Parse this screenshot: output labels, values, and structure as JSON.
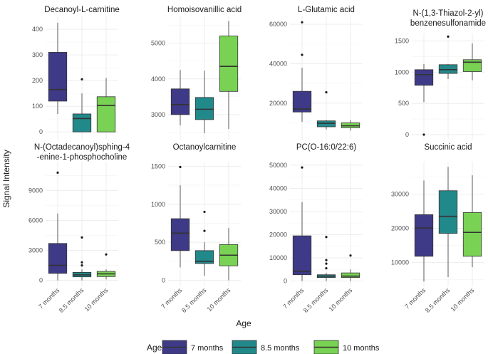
{
  "chart_data": {
    "type": "boxplot",
    "ylabel": "Signal Intensity",
    "xlabel": "Age",
    "categories": [
      "7 months",
      "8.5 months",
      "10 months"
    ],
    "colors": [
      "#3e3a87",
      "#22898b",
      "#79d253"
    ],
    "legend": {
      "title": "Age",
      "placement": "bottom",
      "entries": [
        "7 months",
        "8.5 months",
        "10 months"
      ]
    },
    "panels": [
      {
        "title": [
          "Decanoyl-L-carnitine"
        ],
        "ylim": [
          -30,
          450
        ],
        "ticks": [
          0,
          100,
          200,
          300,
          400
        ],
        "tick_labels": [
          "0",
          "100",
          "200",
          "300",
          "400"
        ],
        "boxes": [
          {
            "lw": 70,
            "q1": 120,
            "med": 165,
            "q3": 310,
            "uw": 425,
            "outliers": []
          },
          {
            "lw": 0,
            "q1": 0,
            "med": 52,
            "q3": 70,
            "uw": 150,
            "outliers": [
              205
            ]
          },
          {
            "lw": 0,
            "q1": 0,
            "med": 103,
            "q3": 137,
            "uw": 210,
            "outliers": []
          }
        ]
      },
      {
        "title": [
          "Homoisovanillic acid"
        ],
        "ylim": [
          2300,
          5750
        ],
        "ticks": [
          3000,
          4000,
          5000
        ],
        "tick_labels": [
          "3000",
          "4000",
          "5000"
        ],
        "boxes": [
          {
            "lw": 2700,
            "q1": 3000,
            "med": 3280,
            "q3": 3720,
            "uw": 4250,
            "outliers": []
          },
          {
            "lw": 2480,
            "q1": 2860,
            "med": 3150,
            "q3": 3480,
            "uw": 4230,
            "outliers": []
          },
          {
            "lw": 2600,
            "q1": 3650,
            "med": 4350,
            "q3": 5200,
            "uw": 5620,
            "outliers": []
          }
        ]
      },
      {
        "title": [
          "L-Glutamic acid"
        ],
        "ylim": [
          1500,
          64000
        ],
        "ticks": [
          20000,
          40000,
          60000
        ],
        "tick_labels": [
          "20000",
          "40000",
          "60000"
        ],
        "boxes": [
          {
            "lw": 10500,
            "q1": 15500,
            "med": 17000,
            "q3": 26000,
            "uw": 38000,
            "outliers": [
              44500,
              61000
            ]
          },
          {
            "lw": 6700,
            "q1": 8000,
            "med": 9800,
            "q3": 11000,
            "uw": 11500,
            "outliers": [
              25500
            ]
          },
          {
            "lw": 6000,
            "q1": 7500,
            "med": 8500,
            "q3": 10000,
            "uw": 11400,
            "outliers": []
          }
        ]
      },
      {
        "title": [
          "N-(1,3-Thiazol-2-yl)",
          "benzenesulfonamide"
        ],
        "ylim": [
          -80,
          1620
        ],
        "ticks": [
          0,
          500,
          1000,
          1500
        ],
        "tick_labels": [
          "0",
          "500",
          "1000",
          "1500"
        ],
        "boxes": [
          {
            "lw": 520,
            "q1": 790,
            "med": 960,
            "q3": 1040,
            "uw": 1130,
            "outliers": [
              0
            ]
          },
          {
            "lw": 890,
            "q1": 980,
            "med": 1040,
            "q3": 1120,
            "uw": 1130,
            "outliers": [
              1570
            ]
          },
          {
            "lw": 870,
            "q1": 1010,
            "med": 1160,
            "q3": 1200,
            "uw": 1460,
            "outliers": []
          }
        ]
      },
      {
        "title": [
          "N-(Octadecanoyl)sphing-4",
          "-enine-1-phosphocholine"
        ],
        "ylim": [
          -600,
          11900
        ],
        "ticks": [
          0,
          3000,
          6000,
          9000
        ],
        "tick_labels": [
          "0",
          "3000",
          "6000",
          "9000"
        ],
        "boxes": [
          {
            "lw": 0,
            "q1": 700,
            "med": 1500,
            "q3": 3700,
            "uw": 6700,
            "outliers": [
              10800
            ]
          },
          {
            "lw": 0,
            "q1": 350,
            "med": 550,
            "q3": 800,
            "uw": 1100,
            "outliers": [
              1500,
              1800,
              4300
            ]
          },
          {
            "lw": 100,
            "q1": 380,
            "med": 650,
            "q3": 900,
            "uw": 1100,
            "outliers": [
              2600
            ]
          }
        ]
      },
      {
        "title": [
          "Octanoylcarnitine"
        ],
        "ylim": [
          -80,
          1560
        ],
        "ticks": [
          0,
          500,
          1000,
          1500
        ],
        "tick_labels": [
          "0",
          "500",
          "1000",
          "1500"
        ],
        "boxes": [
          {
            "lw": 170,
            "q1": 390,
            "med": 620,
            "q3": 810,
            "uw": 1250,
            "outliers": [
              1490
            ]
          },
          {
            "lw": 60,
            "q1": 220,
            "med": 250,
            "q3": 390,
            "uw": 500,
            "outliers": [
              650,
              900
            ]
          },
          {
            "lw": 0,
            "q1": 190,
            "med": 330,
            "q3": 470,
            "uw": 690,
            "outliers": []
          }
        ]
      },
      {
        "title": [
          "PC(O-16:0/22:6)"
        ],
        "ylim": [
          -2300,
          51500
        ],
        "ticks": [
          0,
          10000,
          20000,
          30000,
          40000,
          50000
        ],
        "tick_labels": [
          "0",
          "10000",
          "20000",
          "30000",
          "40000",
          "50000"
        ],
        "boxes": [
          {
            "lw": 0,
            "q1": 2700,
            "med": 4200,
            "q3": 19500,
            "uw": 34000,
            "outliers": [
              49000
            ]
          },
          {
            "lw": 0,
            "q1": 1500,
            "med": 2100,
            "q3": 2700,
            "uw": 3500,
            "outliers": [
              5500,
              7500,
              9000,
              19000
            ]
          },
          {
            "lw": 0,
            "q1": 1500,
            "med": 2100,
            "q3": 3500,
            "uw": 5000,
            "outliers": [
              11000
            ]
          }
        ]
      },
      {
        "title": [
          "Succinic acid"
        ],
        "ylim": [
          3000,
          39500
        ],
        "ticks": [
          10000,
          20000,
          30000
        ],
        "tick_labels": [
          "10000",
          "20000",
          "30000"
        ],
        "boxes": [
          {
            "lw": 4400,
            "q1": 11800,
            "med": 20100,
            "q3": 24000,
            "uw": 34000,
            "outliers": []
          },
          {
            "lw": 5700,
            "q1": 18500,
            "med": 23500,
            "q3": 31000,
            "uw": 38000,
            "outliers": []
          },
          {
            "lw": 8600,
            "q1": 11800,
            "med": 18800,
            "q3": 24600,
            "uw": 35500,
            "outliers": []
          }
        ]
      }
    ]
  }
}
